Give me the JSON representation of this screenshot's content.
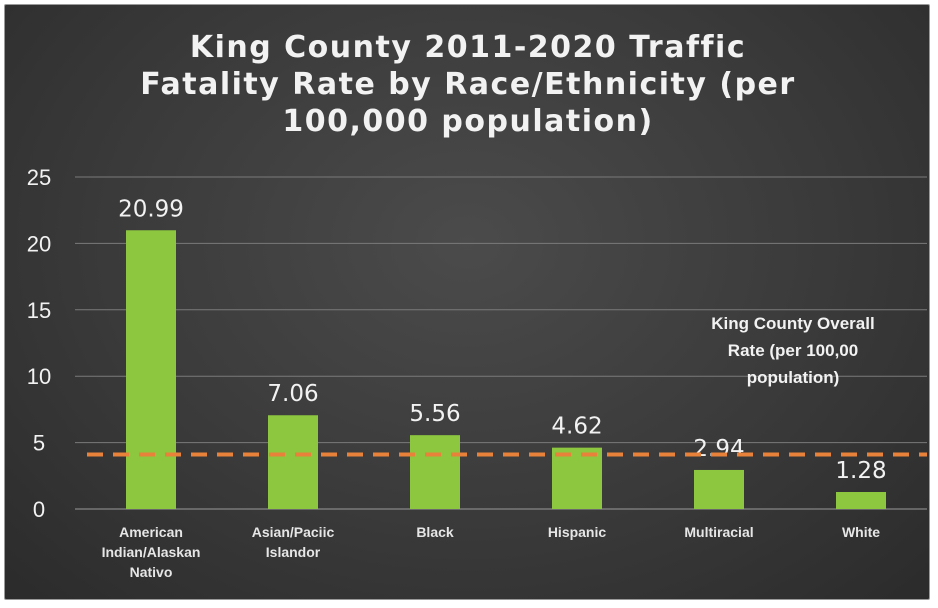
{
  "chart_data": {
    "type": "bar",
    "title": [
      "King County 2011-2020 Traffic",
      "Fatality Rate by Race/Ethnicity (per",
      "100,000 population)"
    ],
    "categories": [
      [
        "American",
        "Indian/Alaskan",
        "Nativo"
      ],
      [
        "Asian/Paciic",
        "Islandor"
      ],
      [
        "Black"
      ],
      [
        "Hispanic"
      ],
      [
        "Multiracial"
      ],
      [
        "White"
      ]
    ],
    "values": [
      20.99,
      7.06,
      5.56,
      4.62,
      2.94,
      1.28
    ],
    "data_labels": [
      "20.99",
      "7.06",
      "5.56",
      "4.62",
      "2.94",
      "1.28"
    ],
    "ylim": [
      0,
      25
    ],
    "yticks": [
      0,
      5,
      10,
      15,
      20,
      25
    ],
    "grid": true,
    "reference_line": {
      "value": 4.1,
      "label": [
        "King County Overall",
        "Rate (per 100,00",
        "population)"
      ],
      "style": "dashed"
    },
    "colors": {
      "bar": "#8dc63f",
      "reference_line": "#e8823a",
      "background": "#3a3a3a",
      "gridline": "#7a7a7a",
      "text": "#f2f2f2"
    }
  }
}
